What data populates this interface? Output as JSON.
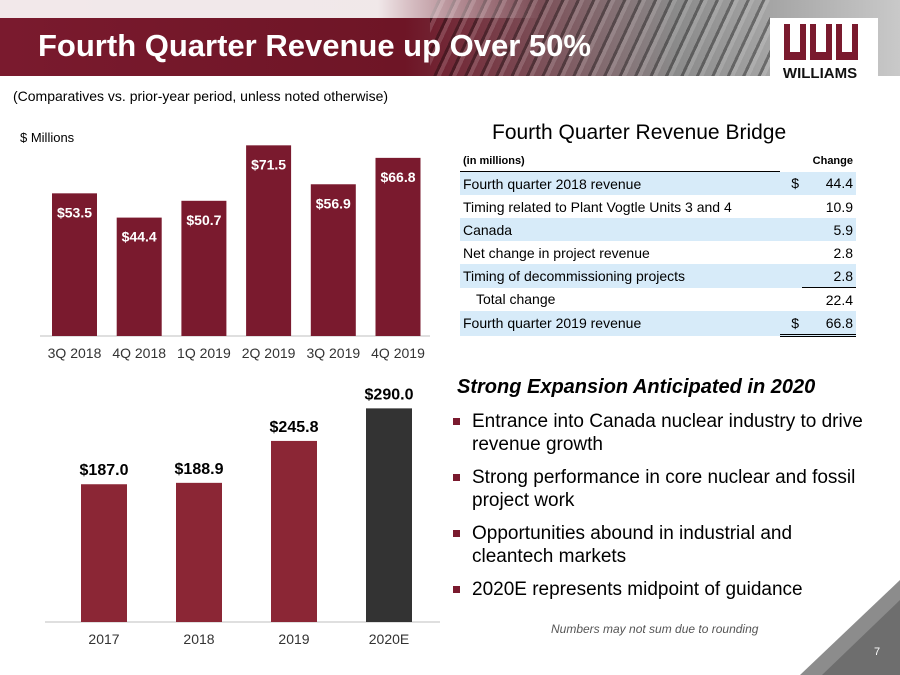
{
  "header": {
    "title": "Fourth Quarter Revenue up Over 50%",
    "logo_text": "WILLIAMS"
  },
  "subtitle": "(Comparatives vs. prior-year period, unless noted otherwise)",
  "units_label": "$ Millions",
  "colors": {
    "brand": "#7a1a2e",
    "bar_dark": "#333333",
    "bar_annual": "#8b2635",
    "table_shade": "#d7ebf9"
  },
  "chart_data": [
    {
      "type": "bar",
      "categories": [
        "3Q 2018",
        "4Q 2018",
        "1Q 2019",
        "2Q 2019",
        "3Q 2019",
        "4Q 2019"
      ],
      "values": [
        53.5,
        44.4,
        50.7,
        71.5,
        56.9,
        66.8
      ],
      "labels": [
        "$53.5",
        "$44.4",
        "$50.7",
        "$71.5",
        "$56.9",
        "$66.8"
      ],
      "ylim": [
        0,
        75
      ]
    },
    {
      "type": "bar",
      "categories": [
        "2017",
        "2018",
        "2019",
        "2020E"
      ],
      "values": [
        187.0,
        188.9,
        245.8,
        290.0
      ],
      "labels": [
        "$187.0",
        "$188.9",
        "$245.8",
        "$290.0"
      ],
      "ylim": [
        0,
        300
      ]
    }
  ],
  "bridge": {
    "title": "Fourth Quarter Revenue Bridge",
    "col_label": "(in millions)",
    "col_change": "Change",
    "rows": [
      {
        "label": "Fourth quarter 2018 revenue",
        "currency": "$",
        "value": "44.4"
      },
      {
        "label": "Timing related to Plant Vogtle Units 3 and 4",
        "currency": "",
        "value": "10.9"
      },
      {
        "label": "Canada",
        "currency": "",
        "value": "5.9"
      },
      {
        "label": "Net change in project revenue",
        "currency": "",
        "value": "2.8"
      },
      {
        "label": "Timing of decommissioning projects",
        "currency": "",
        "value": "2.8"
      },
      {
        "label": "Total change",
        "currency": "",
        "value": "22.4"
      },
      {
        "label": "Fourth quarter 2019 revenue",
        "currency": "$",
        "value": "66.8"
      }
    ]
  },
  "expansion": {
    "title": "Strong Expansion Anticipated in 2020",
    "bullets": [
      "Entrance into Canada nuclear industry to drive revenue growth",
      "Strong performance in core nuclear and fossil project work",
      "Opportunities abound in industrial and cleantech markets",
      "2020E represents midpoint of guidance"
    ]
  },
  "footnote": "Numbers may not sum due to rounding",
  "page_number": "7"
}
